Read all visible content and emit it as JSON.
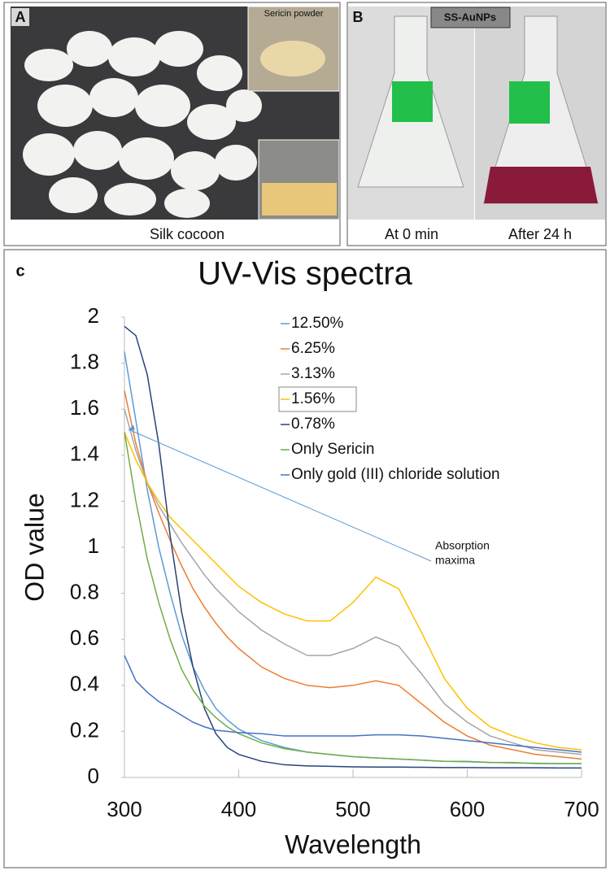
{
  "panel_a": {
    "label": "A",
    "inset_label": "Sericin powder",
    "caption": "Silk cocoon"
  },
  "panel_b": {
    "label": "B",
    "title": "SS-AuNPs",
    "captions": [
      "At 0 min",
      "After 24 h"
    ]
  },
  "chart_data": {
    "type": "line",
    "panel_label": "c",
    "title": "UV-Vis spectra",
    "x_label": "Wavelength",
    "y_label": "OD value",
    "xlim": [
      300,
      700
    ],
    "xticks": [
      300,
      400,
      500,
      600,
      700
    ],
    "ylim": [
      0,
      2
    ],
    "yticks": [
      0,
      0.2,
      0.4,
      0.6,
      0.8,
      1,
      1.2,
      1.4,
      1.6,
      1.8,
      2
    ],
    "grid": false,
    "legend": "top",
    "annotation": [
      "Absorption",
      "maxima"
    ],
    "x": [
      300,
      310,
      320,
      330,
      340,
      350,
      360,
      370,
      380,
      390,
      400,
      420,
      440,
      460,
      480,
      500,
      520,
      540,
      560,
      580,
      600,
      620,
      640,
      660,
      680,
      700
    ],
    "series": [
      {
        "name": "12.50%",
        "color": "#5b9bd5",
        "values": [
          1.85,
          1.55,
          1.25,
          1.0,
          0.8,
          0.62,
          0.48,
          0.38,
          0.3,
          0.25,
          0.21,
          0.16,
          0.13,
          0.11,
          0.1,
          0.09,
          0.085,
          0.08,
          0.075,
          0.07,
          0.07,
          0.065,
          0.065,
          0.06,
          0.06,
          0.06
        ]
      },
      {
        "name": "6.25%",
        "color": "#ed7d31",
        "values": [
          1.68,
          1.45,
          1.28,
          1.15,
          1.03,
          0.92,
          0.82,
          0.74,
          0.67,
          0.61,
          0.56,
          0.48,
          0.43,
          0.4,
          0.39,
          0.4,
          0.42,
          0.4,
          0.32,
          0.24,
          0.18,
          0.14,
          0.12,
          0.1,
          0.09,
          0.08
        ]
      },
      {
        "name": "3.13%",
        "color": "#a5a5a5",
        "values": [
          1.6,
          1.42,
          1.28,
          1.18,
          1.1,
          1.02,
          0.95,
          0.88,
          0.82,
          0.77,
          0.72,
          0.64,
          0.58,
          0.53,
          0.53,
          0.56,
          0.61,
          0.57,
          0.45,
          0.32,
          0.24,
          0.18,
          0.15,
          0.12,
          0.11,
          0.1
        ]
      },
      {
        "name": "1.56%",
        "color": "#ffc000",
        "values": [
          1.5,
          1.38,
          1.28,
          1.2,
          1.13,
          1.08,
          1.03,
          0.98,
          0.93,
          0.88,
          0.83,
          0.76,
          0.71,
          0.68,
          0.68,
          0.76,
          0.87,
          0.82,
          0.63,
          0.43,
          0.3,
          0.22,
          0.18,
          0.15,
          0.13,
          0.12
        ]
      },
      {
        "name": "0.78%",
        "color": "#264478",
        "values": [
          1.96,
          1.92,
          1.75,
          1.45,
          1.05,
          0.72,
          0.48,
          0.3,
          0.19,
          0.13,
          0.1,
          0.07,
          0.055,
          0.05,
          0.048,
          0.046,
          0.045,
          0.045,
          0.044,
          0.043,
          0.043,
          0.042,
          0.042,
          0.042,
          0.041,
          0.041
        ]
      },
      {
        "name": "Only Sericin",
        "color": "#70ad47",
        "values": [
          1.5,
          1.2,
          0.95,
          0.76,
          0.6,
          0.47,
          0.38,
          0.31,
          0.26,
          0.22,
          0.19,
          0.15,
          0.125,
          0.11,
          0.1,
          0.09,
          0.085,
          0.08,
          0.075,
          0.07,
          0.068,
          0.065,
          0.063,
          0.062,
          0.06,
          0.06
        ]
      },
      {
        "name": "Only gold (III) chloride solution",
        "color": "#4472c4",
        "values": [
          0.53,
          0.42,
          0.37,
          0.33,
          0.3,
          0.27,
          0.24,
          0.22,
          0.205,
          0.2,
          0.195,
          0.19,
          0.18,
          0.18,
          0.18,
          0.18,
          0.185,
          0.185,
          0.18,
          0.17,
          0.16,
          0.15,
          0.14,
          0.13,
          0.12,
          0.11
        ]
      }
    ]
  }
}
